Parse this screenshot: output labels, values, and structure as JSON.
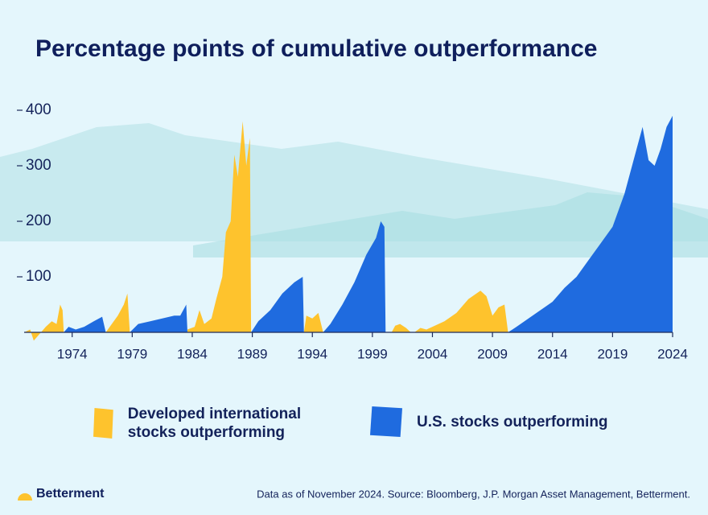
{
  "chart_data": {
    "type": "area",
    "title": "Percentage points of cumulative outperformance",
    "xlim": [
      1970,
      2024
    ],
    "ylim": [
      0,
      400
    ],
    "xticks": [
      1974,
      1979,
      1984,
      1989,
      1994,
      1999,
      2004,
      2009,
      2014,
      2019,
      2024
    ],
    "yticks": [
      100,
      200,
      300,
      400
    ],
    "series": [
      {
        "name": "Developed international stocks outperforming",
        "color": "#fec32d",
        "x": [
          1970.0,
          1970.5,
          1970.8,
          1971.2,
          1971.8,
          1972.3,
          1972.7,
          1973.0,
          1973.2,
          1973.3,
          null,
          1976.8,
          1977.3,
          1977.8,
          1978.3,
          1978.6,
          1978.8,
          null,
          1983.6,
          1984.2,
          1984.6,
          1985.0,
          1985.6,
          1986.0,
          1986.5,
          1986.8,
          1987.2,
          1987.5,
          1987.8,
          1988.2,
          1988.5,
          1988.8,
          1988.9,
          null,
          1993.3,
          1993.5,
          1994.0,
          1994.5,
          1994.9,
          null,
          2000.6,
          2000.9,
          2001.3,
          2001.8,
          2002.2,
          null,
          2002.5,
          2003.0,
          2003.5,
          2004.0,
          2005.0,
          2006.0,
          2007.0,
          2008.0,
          2008.5,
          2009.0,
          2009.5,
          2010.0,
          2010.3
        ],
        "values": [
          0,
          5,
          -15,
          -5,
          10,
          20,
          15,
          50,
          40,
          0,
          null,
          0,
          15,
          30,
          50,
          70,
          0,
          null,
          5,
          10,
          40,
          15,
          25,
          60,
          100,
          180,
          200,
          320,
          280,
          380,
          300,
          350,
          0,
          null,
          0,
          30,
          25,
          35,
          0,
          null,
          0,
          12,
          15,
          8,
          0,
          null,
          0,
          8,
          5,
          10,
          20,
          35,
          60,
          75,
          65,
          30,
          45,
          50,
          0
        ]
      },
      {
        "name": "U.S. stocks outperforming",
        "color": "#1f6bdf",
        "x": [
          1973.3,
          1973.7,
          1974.3,
          1975.0,
          1975.8,
          1976.5,
          1976.8,
          null,
          1978.8,
          1979.5,
          1980.5,
          1981.5,
          1982.5,
          1983.0,
          1983.5,
          1983.6,
          null,
          1988.9,
          1989.5,
          1990.5,
          1991.5,
          1992.5,
          1993.2,
          1993.3,
          null,
          1994.9,
          1995.5,
          1996.5,
          1997.5,
          1998.5,
          1999.3,
          1999.7,
          2000.0,
          2000.1,
          null,
          2010.3,
          2011.0,
          2012.0,
          2013.0,
          2014.0,
          2015.0,
          2016.0,
          2017.0,
          2018.0,
          2019.0,
          2020.0,
          2021.0,
          2021.5,
          2022.0,
          2022.5,
          2023.0,
          2023.5,
          2024.0
        ],
        "values": [
          0,
          10,
          5,
          10,
          20,
          28,
          0,
          null,
          0,
          15,
          20,
          25,
          30,
          30,
          50,
          0,
          null,
          0,
          20,
          40,
          70,
          90,
          100,
          0,
          null,
          0,
          15,
          50,
          90,
          140,
          170,
          200,
          190,
          0,
          null,
          0,
          10,
          25,
          40,
          55,
          80,
          100,
          130,
          160,
          190,
          250,
          330,
          370,
          310,
          300,
          330,
          370,
          390
        ]
      }
    ],
    "logo_text": "Betterment",
    "note": "Data as of November 2024. Source: Bloomberg, J.P. Morgan Asset Management, Betterment."
  }
}
